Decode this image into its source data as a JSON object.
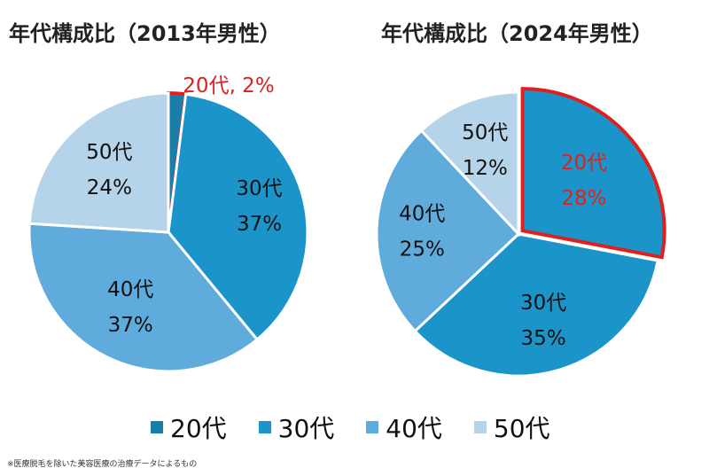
{
  "chart_data": [
    {
      "type": "pie",
      "title": "年代構成比（2013年男性）",
      "categories": [
        "20代",
        "30代",
        "40代",
        "50代"
      ],
      "values": [
        2,
        37,
        37,
        24
      ],
      "labels": [
        "20代, 2%",
        "30代\n37%",
        "40代\n37%",
        "50代\n24%"
      ],
      "highlight": "20代",
      "start": "12 o'clock, clockwise"
    },
    {
      "type": "pie",
      "title": "年代構成比（2024年男性）",
      "categories": [
        "20代",
        "30代",
        "40代",
        "50代"
      ],
      "values": [
        28,
        35,
        25,
        12
      ],
      "labels": [
        "20代\n28%",
        "30代\n35%",
        "40代\n25%",
        "50代\n12%"
      ],
      "highlight": "20代",
      "start": "12 o'clock, clockwise"
    }
  ],
  "legend": [
    "20代",
    "30代",
    "40代",
    "50代"
  ],
  "colors": {
    "20代": "#1a7fa8",
    "30代": "#1b95c9",
    "40代": "#5eabdc",
    "50代": "#b5d4ea",
    "highlight": "#e0201e"
  },
  "footnote": "※医療脱毛を除いた美容医療の治療データによるもの"
}
